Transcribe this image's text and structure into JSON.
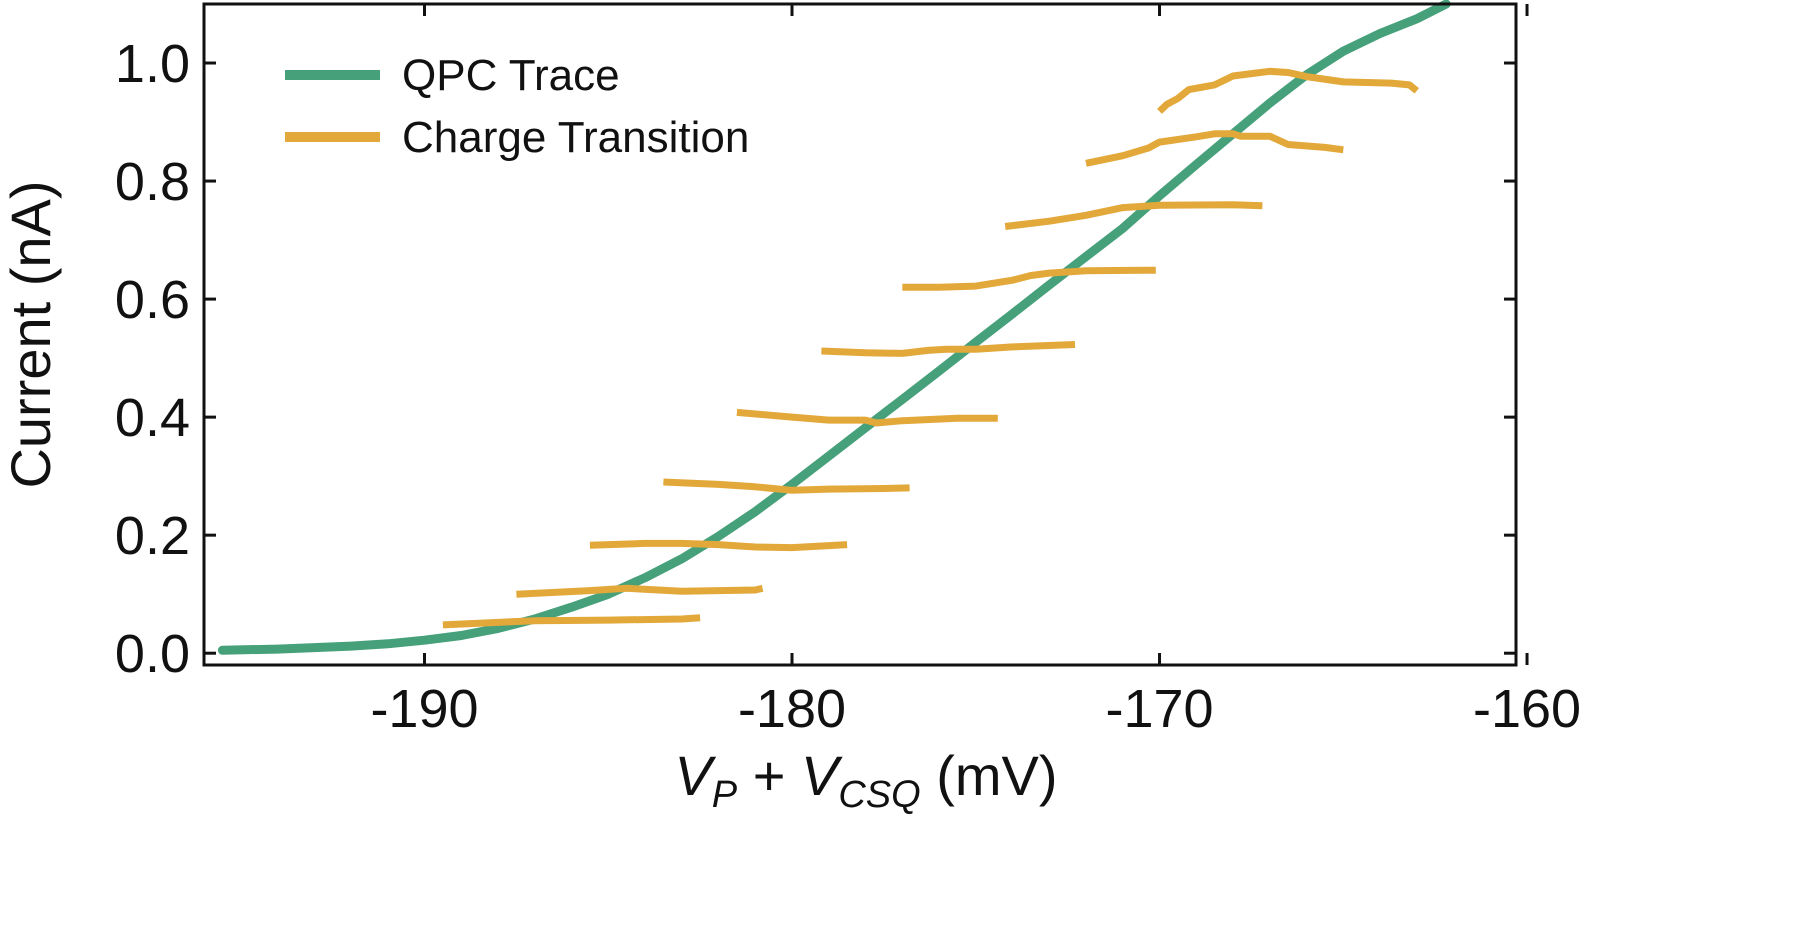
{
  "chart_data": {
    "type": "line",
    "xlabel": {
      "v1": "V",
      "s1": "P",
      "plus": " + ",
      "v2": "V",
      "s2": "CSQ",
      "unit": " (mV)"
    },
    "ylabel": "Current (nA)",
    "xlim": [
      -196,
      -160.3
    ],
    "ylim": [
      -0.02,
      1.1
    ],
    "x_ticks": [
      -190,
      -180,
      -170,
      -160
    ],
    "y_ticks": [
      0.0,
      0.2,
      0.4,
      0.6,
      0.8,
      1.0
    ],
    "y_tick_labels": [
      "0.0",
      "0.2",
      "0.4",
      "0.6",
      "0.8",
      "1.0"
    ],
    "grid": false,
    "legend_position": "top-left",
    "series": [
      {
        "name": "QPC Trace",
        "color": "#46a07a",
        "x": [
          -195.5,
          -194,
          -192,
          -191,
          -190,
          -189,
          -188,
          -187,
          -186,
          -185,
          -184,
          -183,
          -182,
          -181,
          -180,
          -179,
          -178,
          -177,
          -176,
          -175,
          -174,
          -173,
          -172,
          -171,
          -170,
          -169,
          -168,
          -167,
          -166,
          -165,
          -164,
          -163,
          -162.2
        ],
        "y": [
          0.005,
          0.007,
          0.012,
          0.016,
          0.022,
          0.03,
          0.042,
          0.058,
          0.078,
          0.1,
          0.128,
          0.16,
          0.198,
          0.24,
          0.286,
          0.334,
          0.382,
          0.43,
          0.478,
          0.527,
          0.575,
          0.624,
          0.672,
          0.72,
          0.775,
          0.828,
          0.88,
          0.932,
          0.98,
          1.02,
          1.05,
          1.075,
          1.1
        ]
      },
      {
        "name": "Charge Transition",
        "color": "#e3a83a",
        "segments": [
          {
            "x": [
              -189.5,
              -187,
              -185,
              -183,
              -182.5
            ],
            "y": [
              0.048,
              0.055,
              0.056,
              0.058,
              0.06
            ]
          },
          {
            "x": [
              -187.5,
              -185.5,
              -184.5,
              -183,
              -181,
              -180.8
            ],
            "y": [
              0.1,
              0.106,
              0.11,
              0.105,
              0.107,
              0.11
            ]
          },
          {
            "x": [
              -185.5,
              -184,
              -183,
              -182,
              -181,
              -180,
              -178.5
            ],
            "y": [
              0.183,
              0.186,
              0.186,
              0.184,
              0.18,
              0.179,
              0.184
            ]
          },
          {
            "x": [
              -183.5,
              -182,
              -181,
              -180,
              -179,
              -177.5,
              -176.8
            ],
            "y": [
              0.29,
              0.286,
              0.282,
              0.276,
              0.278,
              0.279,
              0.28
            ]
          },
          {
            "x": [
              -181.5,
              -180,
              -179,
              -178,
              -177.7,
              -177,
              -175.5,
              -174.4
            ],
            "y": [
              0.408,
              0.4,
              0.395,
              0.395,
              0.39,
              0.394,
              0.398,
              0.398
            ]
          },
          {
            "x": [
              -179.2,
              -178,
              -177,
              -176.3,
              -175.8,
              -175,
              -174,
              -172.3
            ],
            "y": [
              0.512,
              0.509,
              0.508,
              0.513,
              0.515,
              0.515,
              0.519,
              0.523
            ]
          },
          {
            "x": [
              -177,
              -176,
              -175,
              -174,
              -173.5,
              -173,
              -172,
              -170.1
            ],
            "y": [
              0.62,
              0.62,
              0.622,
              0.632,
              0.64,
              0.644,
              0.648,
              0.649
            ]
          },
          {
            "x": [
              -174.2,
              -173,
              -172,
              -171,
              -170,
              -168,
              -167.2
            ],
            "y": [
              0.723,
              0.732,
              0.742,
              0.755,
              0.759,
              0.76,
              0.758
            ]
          },
          {
            "x": [
              -172,
              -171,
              -170.3,
              -170,
              -169,
              -168.5,
              -168,
              -167.8,
              -167,
              -166.5,
              -165.5,
              -165
            ],
            "y": [
              0.83,
              0.843,
              0.856,
              0.866,
              0.875,
              0.88,
              0.88,
              0.876,
              0.876,
              0.862,
              0.857,
              0.853
            ]
          },
          {
            "x": [
              -170,
              -169.8,
              -169.5,
              -169.2,
              -168.5,
              -168,
              -167.5,
              -167,
              -166.5,
              -166,
              -165,
              -163.7,
              -163.2,
              -163
            ],
            "y": [
              0.918,
              0.93,
              0.94,
              0.955,
              0.963,
              0.978,
              0.982,
              0.986,
              0.984,
              0.977,
              0.968,
              0.966,
              0.963,
              0.953
            ]
          }
        ]
      }
    ]
  }
}
